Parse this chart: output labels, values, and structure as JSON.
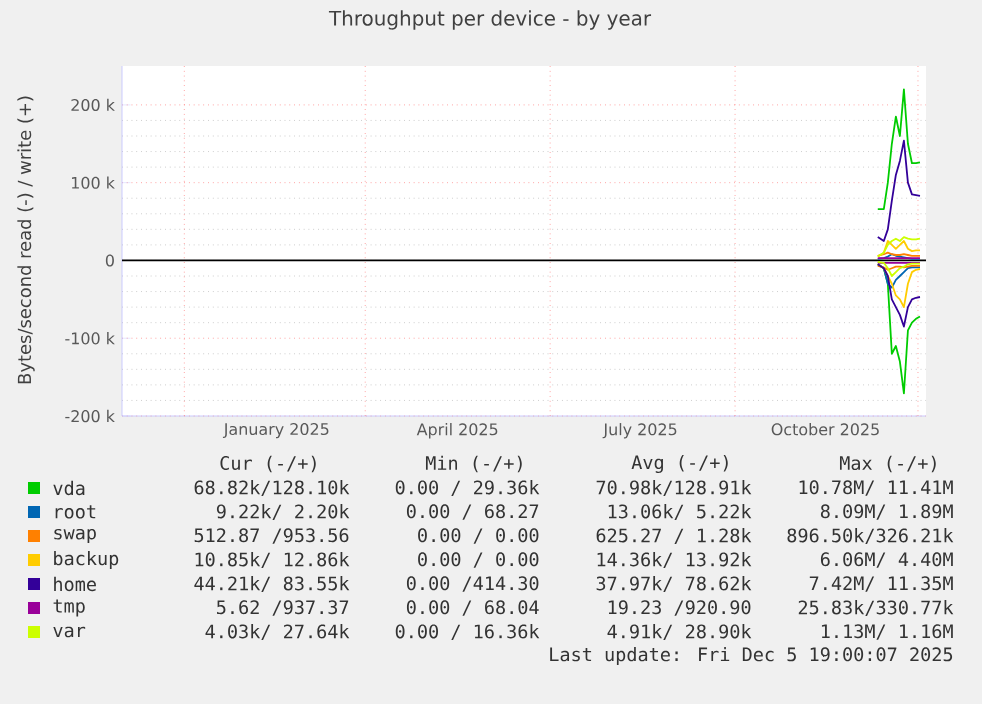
{
  "chart_data": {
    "type": "line",
    "title": "Throughput per device - by year",
    "ylabel": "Bytes/second read (-) / write (+)",
    "x": [
      "2025-11-11",
      "2025-11-14",
      "2025-11-16",
      "2025-11-18",
      "2025-11-20",
      "2025-11-22",
      "2025-11-24",
      "2025-11-26",
      "2025-11-28",
      "2025-11-30",
      "2025-12-02"
    ],
    "xlim": [
      "2024-10-31",
      "2025-12-05"
    ],
    "xticks": [
      {
        "value": "2025-01-16",
        "label": "January 2025"
      },
      {
        "value": "2025-04-16",
        "label": "April 2025"
      },
      {
        "value": "2025-07-16",
        "label": "July 2025"
      },
      {
        "value": "2025-10-16",
        "label": "October 2025"
      },
      {
        "value": "2024-12-01",
        "label": null
      },
      {
        "value": "2025-03-01",
        "label": null
      },
      {
        "value": "2025-06-01",
        "label": null
      },
      {
        "value": "2025-09-01",
        "label": null
      },
      {
        "value": "2025-12-01",
        "label": null
      }
    ],
    "ylim": [
      -200000,
      250000
    ],
    "yticks": [
      {
        "value": -200000,
        "label": "-200 k"
      },
      {
        "value": -100000,
        "label": "-100 k"
      },
      0,
      {
        "value": 100000,
        "label": "100 k"
      },
      {
        "value": 200000,
        "label": "200 k"
      }
    ],
    "grid": true,
    "legend": "bottom",
    "line_style": "solid",
    "marker": "none",
    "ref_lines": [
      {
        "axis": "y",
        "value": 0,
        "color": "#000000"
      }
    ],
    "series": [
      {
        "name": "vda",
        "color": "#00cc00",
        "values": [
          66000,
          66000,
          100000,
          150000,
          185000,
          160000,
          220000,
          150000,
          125000,
          125000,
          126000
        ]
      },
      {
        "color": "#00cc00",
        "values": [
          -5000,
          -10000,
          -30000,
          -120000,
          -110000,
          -130000,
          -171000,
          -90000,
          -80000,
          -75000,
          -72000
        ]
      },
      {
        "name": "root",
        "color": "#0066b3",
        "values": [
          2000,
          3000,
          5000,
          8000,
          6000,
          5000,
          4000,
          3000,
          2000,
          2000,
          2000
        ]
      },
      {
        "color": "#0066b3",
        "values": [
          -5000,
          -10000,
          -30000,
          -35000,
          -25000,
          -20000,
          -15000,
          -10000,
          -9000,
          -9000,
          -9000
        ]
      },
      {
        "name": "swap",
        "color": "#ff8000",
        "values": [
          6000,
          8000,
          10000,
          8000,
          7000,
          7000,
          8000,
          7000,
          6000,
          6000,
          6000
        ]
      },
      {
        "color": "#ff8000",
        "values": [
          -7000,
          -9000,
          -12000,
          -10000,
          -8000,
          -8000,
          -9000,
          -8000,
          -7000,
          -7000,
          -7000
        ]
      },
      {
        "name": "backup",
        "color": "#ffcc00",
        "values": [
          5000,
          10000,
          25000,
          20000,
          15000,
          20000,
          25000,
          15000,
          12000,
          13000,
          13000
        ]
      },
      {
        "color": "#ffcc00",
        "values": [
          -5000,
          -10000,
          -20000,
          -30000,
          -45000,
          -50000,
          -60000,
          -30000,
          -15000,
          -12000,
          -11000
        ]
      },
      {
        "name": "home",
        "color": "#330099",
        "values": [
          30000,
          25000,
          40000,
          77000,
          110000,
          128000,
          154000,
          100000,
          85000,
          84000,
          83000
        ]
      },
      {
        "color": "#330099",
        "values": [
          -5000,
          -10000,
          -20000,
          -50000,
          -60000,
          -70000,
          -85000,
          -60000,
          -50000,
          -48000,
          -47000
        ]
      },
      {
        "name": "tmp",
        "color": "#990099",
        "values": [
          3000,
          3000,
          3000,
          3000,
          3000,
          3000,
          3000,
          3000,
          3000,
          3000,
          3000
        ]
      },
      {
        "color": "#990099",
        "values": [
          -3000,
          -3000,
          -3000,
          -3000,
          -3000,
          -3000,
          -3000,
          -3000,
          -3000,
          -3000,
          -3000
        ]
      },
      {
        "name": "var",
        "color": "#ccff00",
        "values": [
          5000,
          10000,
          20000,
          25000,
          28000,
          25000,
          30000,
          28000,
          27000,
          27000,
          28000
        ]
      },
      {
        "color": "#ccff00",
        "values": [
          -2000,
          -3000,
          -10000,
          -20000,
          -15000,
          -10000,
          -8000,
          -5000,
          -4000,
          -4000,
          -4000
        ]
      }
    ],
    "annotations": [
      "Cur (-/+)",
      "Min (-/+)",
      "Avg (-/+)",
      "Max (-/+)",
      "68.82k/128.10k",
      "0.00 / 29.36k",
      "70.98k/128.91k",
      "10.78M/ 11.41M",
      "9.22k/ 2.20k",
      "0.00 / 68.27",
      "13.06k/ 5.22k",
      "8.09M/ 1.89M",
      "512.87 /953.56",
      "0.00 / 0.00",
      "625.27 / 1.28k",
      "896.50k/326.21k",
      "10.85k/ 12.86k",
      "0.00 / 0.00",
      "14.36k/ 13.92k",
      "6.06M/ 4.40M",
      "44.21k/ 83.55k",
      "0.00 /414.30",
      "37.97k/ 78.62k",
      "7.42M/ 11.35M",
      "5.62 /937.37",
      "0.00 / 68.04",
      "19.23 /920.90",
      "25.83k/330.77k",
      "4.03k/ 27.64k",
      "0.00 / 16.36k",
      "4.91k/ 28.90k",
      "1.13M/ 1.16M",
      "Last update: Fri Dec 5 19:00:07 2025"
    ]
  }
}
